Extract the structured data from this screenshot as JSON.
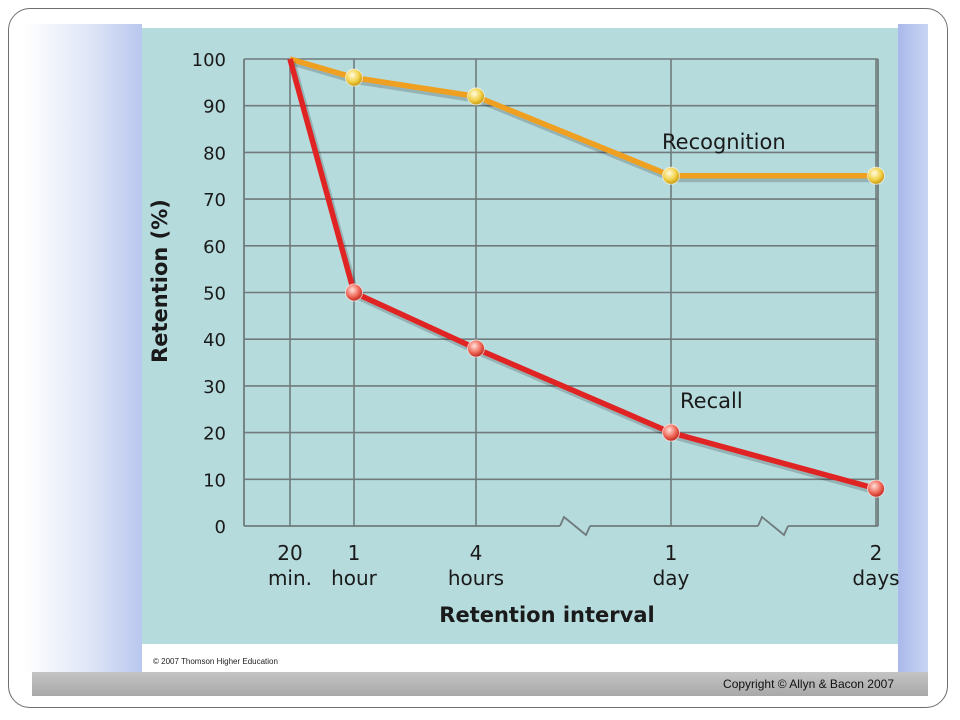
{
  "copyright": "Copyright © Allyn & Bacon 2007",
  "source_credit": "© 2007 Thomson Higher Education",
  "colors": {
    "panel": "#b6dbdd",
    "grid": "#6f7b7c",
    "recognition": "#f0a020",
    "recall": "#e02424"
  },
  "chart_data": {
    "type": "line",
    "xlabel": "Retention interval",
    "ylabel": "Retention (%)",
    "ylim": [
      0,
      100
    ],
    "yticks": [
      "0",
      "10",
      "20",
      "30",
      "40",
      "50",
      "60",
      "70",
      "80",
      "90",
      "100"
    ],
    "categories": [
      {
        "line1": "20",
        "line2": "min."
      },
      {
        "line1": "1",
        "line2": "hour"
      },
      {
        "line1": "4",
        "line2": "hours"
      },
      {
        "line1": "1",
        "line2": "day"
      },
      {
        "line1": "2",
        "line2": "days"
      }
    ],
    "grid": true,
    "axis_breaks": [
      "between 4 hours and 1 day",
      "between 1 day and 2 days"
    ],
    "series": [
      {
        "name": "Recognition",
        "key": "recognition",
        "values": [
          100,
          96,
          92,
          75,
          75
        ]
      },
      {
        "name": "Recall",
        "key": "recall",
        "values": [
          100,
          50,
          38,
          20,
          8
        ]
      }
    ]
  }
}
